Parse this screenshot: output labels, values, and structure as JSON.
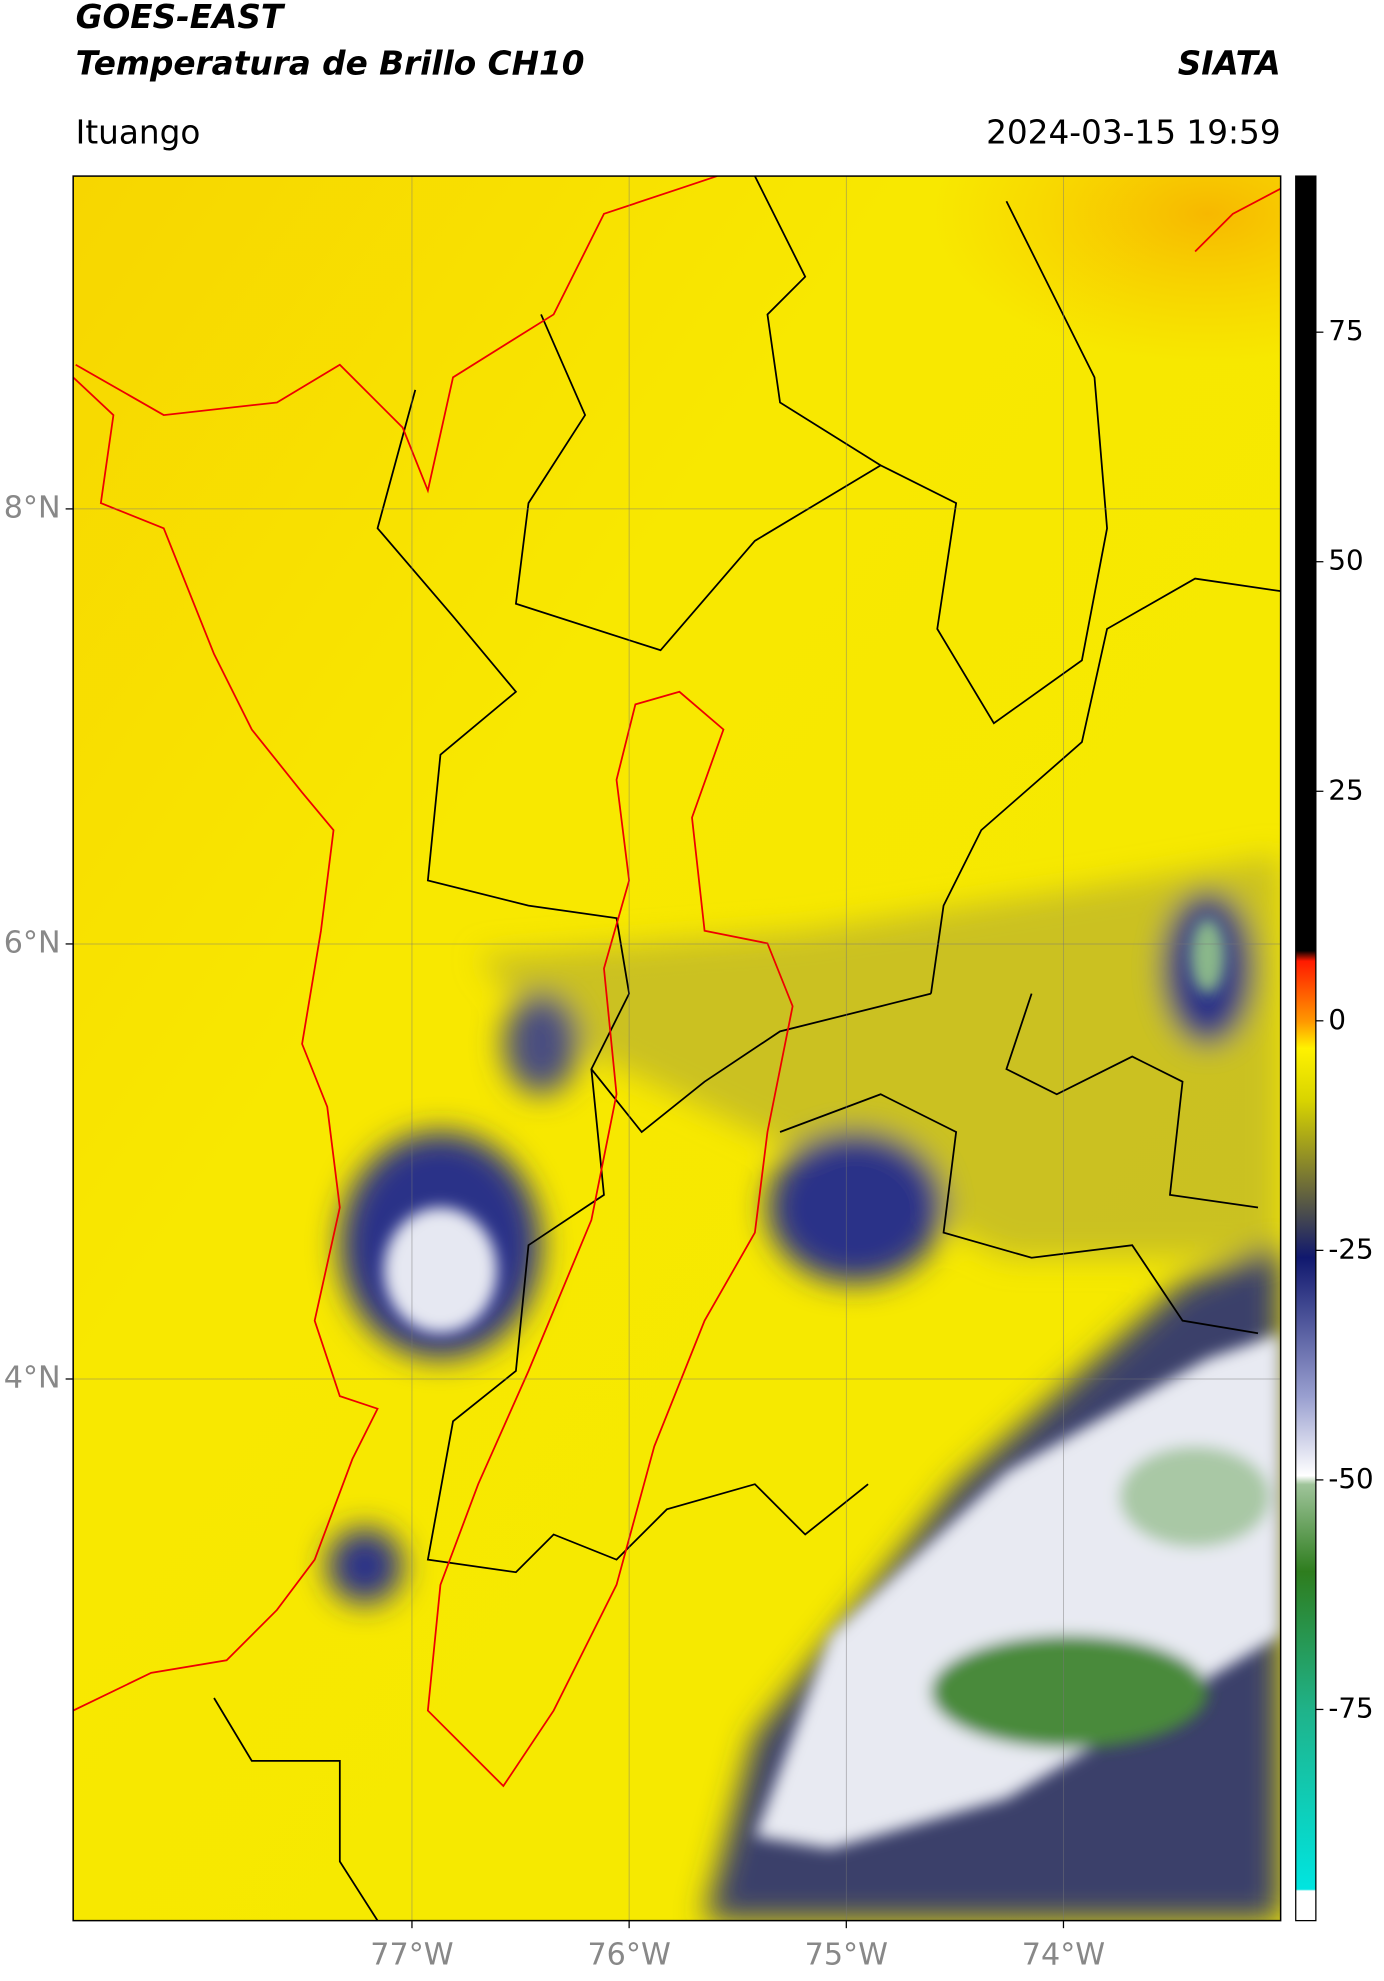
{
  "header": {
    "title": "GOES-EAST",
    "subtitle": "Temperatura de Brillo CH10",
    "source": "SIATA",
    "region": "Ituango",
    "datetime": "2024-03-15 19:59"
  },
  "map": {
    "lon_range": [
      -78.56,
      -73.0
    ],
    "lat_range": [
      1.51,
      9.53
    ],
    "lon_ticks": [
      {
        "value": -77,
        "label": "77°W"
      },
      {
        "value": -76,
        "label": "76°W"
      },
      {
        "value": -75,
        "label": "75°W"
      },
      {
        "value": -74,
        "label": "74°W"
      }
    ],
    "lat_ticks": [
      {
        "value": 8,
        "label": "8°N"
      },
      {
        "value": 6,
        "label": "6°N"
      },
      {
        "value": 4,
        "label": "4°N"
      }
    ],
    "grid": true
  },
  "colorbar": {
    "range": [
      -98,
      92
    ],
    "ticks": [
      75,
      50,
      25,
      0,
      -25,
      -50,
      -75
    ]
  }
}
